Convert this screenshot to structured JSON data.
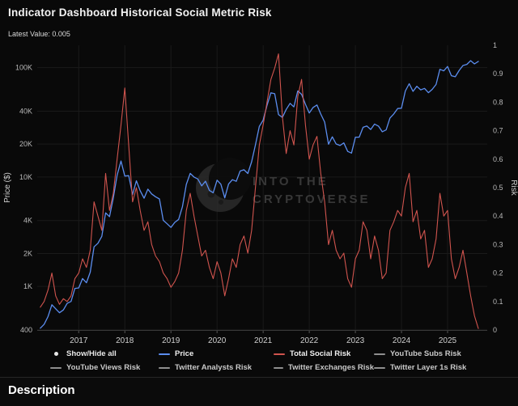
{
  "page": {
    "title": "Indicator Dashboard Historical Social Metric Risk",
    "latest_value_text": "Latest Value: 0.005"
  },
  "watermark": {
    "line1": "INTO THE",
    "line2": "CRYPTOVERSE"
  },
  "footer": {
    "description_label": "Description"
  },
  "colors": {
    "background": "#090909",
    "price_line": "#5b8def",
    "risk_line": "#d0544e",
    "grid": "#1a1a1a",
    "axis": "#3a3a3a",
    "tick_text": "#b8b8b8"
  },
  "legend": {
    "rows": [
      [
        {
          "label": "Show/Hide all",
          "marker": "dot",
          "color": "#e8e8e8",
          "text_color": "#e8e8e8"
        },
        {
          "label": "Price",
          "marker": "line",
          "color": "#5b8def",
          "text_color": "#f0f0f0"
        },
        {
          "label": "Total Social Risk",
          "marker": "line",
          "color": "#d0544e",
          "text_color": "#f0f0f0"
        },
        {
          "label": "YouTube Subs Risk",
          "marker": "line",
          "color": "#8f8f8f",
          "text_color": "#c9c9c9"
        }
      ],
      [
        {
          "label": "YouTube Views Risk",
          "marker": "line",
          "color": "#8f8f8f",
          "text_color": "#c9c9c9"
        },
        {
          "label": "Twitter Analysts Risk",
          "marker": "line",
          "color": "#8f8f8f",
          "text_color": "#c9c9c9"
        },
        {
          "label": "Twitter Exchanges Risk",
          "marker": "line",
          "color": "#8f8f8f",
          "text_color": "#c9c9c9"
        },
        {
          "label": "Twitter Layer 1s Risk",
          "marker": "line",
          "color": "#8f8f8f",
          "text_color": "#c9c9c9"
        }
      ]
    ]
  },
  "chart_data": {
    "type": "line",
    "title": "Indicator Dashboard Historical Social Metric Risk",
    "latest_value": 0.005,
    "ylabel_left": "Price ($)",
    "ylabel_right": "Risk",
    "x_axis": {
      "min": 2016.1,
      "max": 2025.86,
      "ticks": [
        2017,
        2018,
        2019,
        2020,
        2021,
        2022,
        2023,
        2024,
        2025
      ]
    },
    "left_axis": {
      "scale": "log",
      "min": 400,
      "max": 160000,
      "ticks": [
        {
          "value": 400,
          "label": "400"
        },
        {
          "value": 1000,
          "label": "1K"
        },
        {
          "value": 2000,
          "label": "2K"
        },
        {
          "value": 4000,
          "label": "4K"
        },
        {
          "value": 10000,
          "label": "10K"
        },
        {
          "value": 20000,
          "label": "20K"
        },
        {
          "value": 40000,
          "label": "40K"
        },
        {
          "value": 100000,
          "label": "100K"
        }
      ]
    },
    "right_axis": {
      "scale": "linear",
      "min": 0,
      "max": 1,
      "ticks": [
        0,
        0.1,
        0.2,
        0.3,
        0.4,
        0.5,
        0.6,
        0.7,
        0.8,
        0.9,
        1
      ]
    },
    "x": [
      2016.167,
      2016.25,
      2016.333,
      2016.417,
      2016.5,
      2016.583,
      2016.667,
      2016.75,
      2016.833,
      2016.917,
      2017.0,
      2017.083,
      2017.167,
      2017.25,
      2017.333,
      2017.417,
      2017.5,
      2017.583,
      2017.667,
      2017.75,
      2017.833,
      2017.917,
      2018.0,
      2018.083,
      2018.167,
      2018.25,
      2018.333,
      2018.417,
      2018.5,
      2018.583,
      2018.667,
      2018.75,
      2018.833,
      2018.917,
      2019.0,
      2019.083,
      2019.167,
      2019.25,
      2019.333,
      2019.417,
      2019.5,
      2019.583,
      2019.667,
      2019.75,
      2019.833,
      2019.917,
      2020.0,
      2020.083,
      2020.167,
      2020.25,
      2020.333,
      2020.417,
      2020.5,
      2020.583,
      2020.667,
      2020.75,
      2020.833,
      2020.917,
      2021.0,
      2021.083,
      2021.167,
      2021.25,
      2021.333,
      2021.417,
      2021.5,
      2021.583,
      2021.667,
      2021.75,
      2021.833,
      2021.917,
      2022.0,
      2022.083,
      2022.167,
      2022.25,
      2022.333,
      2022.417,
      2022.5,
      2022.583,
      2022.667,
      2022.75,
      2022.833,
      2022.917,
      2023.0,
      2023.083,
      2023.167,
      2023.25,
      2023.333,
      2023.417,
      2023.5,
      2023.583,
      2023.667,
      2023.75,
      2023.833,
      2023.917,
      2024.0,
      2024.083,
      2024.167,
      2024.25,
      2024.333,
      2024.417,
      2024.5,
      2024.583,
      2024.667,
      2024.75,
      2024.833,
      2024.917,
      2025.0,
      2025.083,
      2025.167,
      2025.25,
      2025.333,
      2025.417,
      2025.5,
      2025.583,
      2025.667
    ],
    "series": [
      {
        "name": "Price",
        "axis": "left",
        "color": "#5b8def",
        "width": 1.3,
        "values": [
          415,
          450,
          530,
          680,
          625,
          575,
          610,
          700,
          730,
          960,
          970,
          1180,
          1080,
          1350,
          2300,
          2480,
          2870,
          4700,
          4340,
          6450,
          10400,
          14000,
          10200,
          10300,
          6930,
          9240,
          7500,
          6400,
          7750,
          7010,
          6600,
          6300,
          4020,
          3740,
          3460,
          3850,
          4100,
          5350,
          8560,
          10800,
          10000,
          9600,
          8300,
          9150,
          7550,
          7190,
          9350,
          8600,
          6440,
          8620,
          9450,
          9140,
          11350,
          11650,
          10780,
          13800,
          19700,
          29000,
          33100,
          45200,
          58800,
          57750,
          37300,
          35040,
          41460,
          47100,
          43790,
          61300,
          57000,
          46200,
          38480,
          43190,
          45540,
          37640,
          31790,
          19940,
          23300,
          20050,
          19430,
          20490,
          17160,
          16540,
          23130,
          23140,
          28480,
          29270,
          27220,
          30470,
          29230,
          25930,
          26960,
          34660,
          37720,
          42270,
          42580,
          61200,
          71330,
          60640,
          67540,
          62680,
          64620,
          58970,
          63330,
          70220,
          96450,
          93430,
          102400,
          84350,
          82550,
          94180,
          104600,
          107100,
          115800,
          108200,
          114000
        ]
      },
      {
        "name": "Total Social Risk",
        "axis": "right",
        "color": "#d0544e",
        "width": 1.1,
        "values": [
          0.08,
          0.1,
          0.14,
          0.2,
          0.12,
          0.09,
          0.11,
          0.1,
          0.12,
          0.18,
          0.2,
          0.25,
          0.22,
          0.28,
          0.45,
          0.4,
          0.35,
          0.55,
          0.42,
          0.48,
          0.6,
          0.72,
          0.85,
          0.65,
          0.45,
          0.5,
          0.42,
          0.35,
          0.38,
          0.3,
          0.26,
          0.24,
          0.2,
          0.18,
          0.15,
          0.17,
          0.2,
          0.28,
          0.42,
          0.48,
          0.4,
          0.33,
          0.26,
          0.28,
          0.22,
          0.18,
          0.24,
          0.2,
          0.12,
          0.18,
          0.25,
          0.22,
          0.3,
          0.33,
          0.27,
          0.35,
          0.5,
          0.65,
          0.72,
          0.8,
          0.88,
          0.92,
          0.97,
          0.75,
          0.62,
          0.7,
          0.65,
          0.82,
          0.88,
          0.72,
          0.6,
          0.65,
          0.68,
          0.55,
          0.45,
          0.3,
          0.35,
          0.28,
          0.25,
          0.27,
          0.18,
          0.15,
          0.25,
          0.28,
          0.38,
          0.35,
          0.25,
          0.33,
          0.28,
          0.18,
          0.2,
          0.35,
          0.38,
          0.42,
          0.4,
          0.5,
          0.55,
          0.38,
          0.42,
          0.32,
          0.35,
          0.22,
          0.25,
          0.32,
          0.48,
          0.4,
          0.42,
          0.25,
          0.18,
          0.22,
          0.28,
          0.2,
          0.12,
          0.05,
          0.005
        ]
      }
    ]
  }
}
